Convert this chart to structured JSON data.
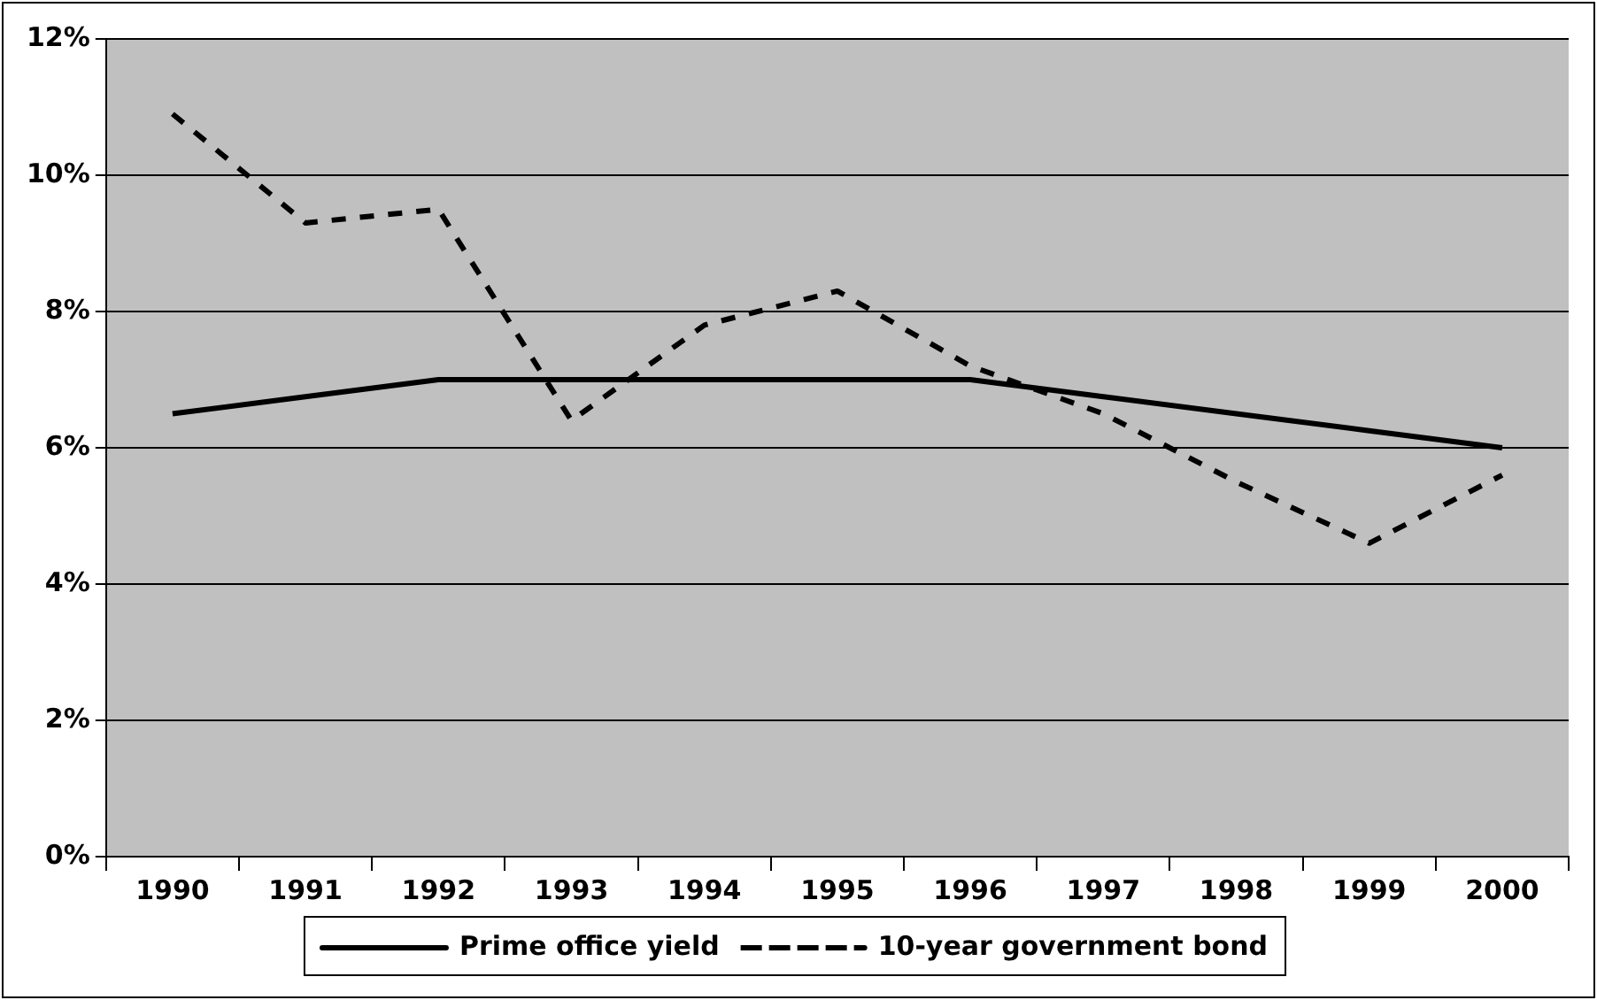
{
  "chart_data": {
    "type": "line",
    "categories": [
      "1990",
      "1991",
      "1992",
      "1993",
      "1994",
      "1995",
      "1996",
      "1997",
      "1998",
      "1999",
      "2000"
    ],
    "series": [
      {
        "name": "Prime office yield",
        "color": "#000000",
        "line_style": "solid",
        "values": [
          6.5,
          6.75,
          7,
          7,
          7,
          7,
          7,
          6.75,
          6.5,
          6.25,
          6
        ]
      },
      {
        "name": "10-year government bond",
        "color": "#000000",
        "line_style": "dashed",
        "values": [
          10.9,
          9.3,
          9.5,
          6.4,
          7.8,
          8.3,
          7.2,
          6.5,
          5.5,
          4.6,
          5.6
        ]
      }
    ],
    "ylim": [
      0,
      12
    ],
    "yticks": [
      {
        "value": 0,
        "label": "0%"
      },
      {
        "value": 2,
        "label": "2%"
      },
      {
        "value": 4,
        "label": "4%"
      },
      {
        "value": 6,
        "label": "6%"
      },
      {
        "value": 8,
        "label": "8%"
      },
      {
        "value": 10,
        "label": "10%"
      },
      {
        "value": 12,
        "label": "12%"
      }
    ],
    "grid": "y",
    "legend": "bottom",
    "marker": "none"
  }
}
